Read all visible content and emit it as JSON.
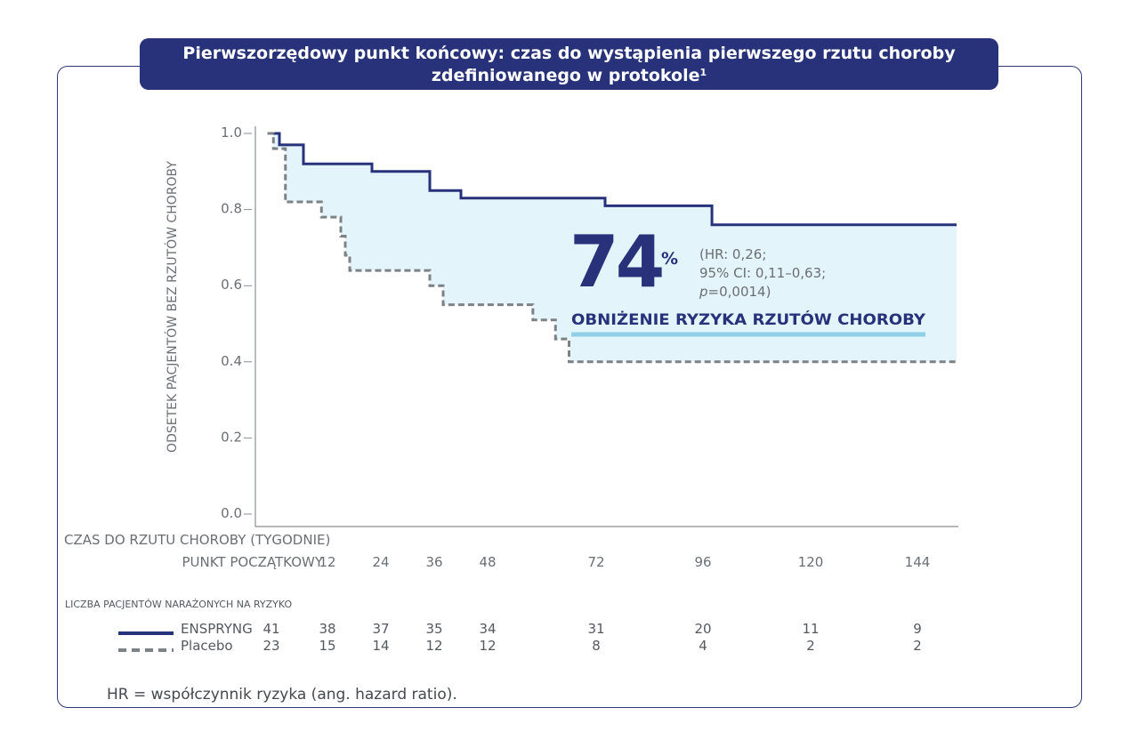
{
  "title": {
    "line1": "Pierwszorzędowy punkt końcowy: czas do wystąpienia pierwszego rzutu choroby",
    "line2": "zdefiniowanego w protokole",
    "footnote_mark": "1"
  },
  "colors": {
    "navy": "#27327a",
    "placebo": "#7d8287",
    "fill": "#e3f4fa",
    "underline": "#8fd0e8"
  },
  "chart_data": {
    "type": "line",
    "subtype": "kaplan-meier step",
    "ylabel": "ODSETEK PACJENTÓW BEZ RZUTÓW CHOROBY",
    "xlabel": "CZAS DO RZUTU CHOROBY (TYGODNIE)",
    "ylim": [
      0,
      1.0
    ],
    "xlim": [
      0,
      152
    ],
    "y_ticks": [
      "0.0",
      "0.2",
      "0.4",
      "0.6",
      "0.8",
      "1.0"
    ],
    "x_ticks": [
      {
        "value": 0,
        "label": "PUNKT POCZĄTKOWY"
      },
      {
        "value": 12,
        "label": "12"
      },
      {
        "value": 24,
        "label": "24"
      },
      {
        "value": 36,
        "label": "36"
      },
      {
        "value": 48,
        "label": "48"
      },
      {
        "value": 72,
        "label": "72"
      },
      {
        "value": 96,
        "label": "96"
      },
      {
        "value": 120,
        "label": "120"
      },
      {
        "value": 144,
        "label": "144"
      }
    ],
    "series": [
      {
        "name": "ENSPRYNG",
        "style": "solid",
        "steps": [
          [
            2,
            1.0
          ],
          [
            4,
            0.97
          ],
          [
            8,
            0.92
          ],
          [
            22,
            0.9
          ],
          [
            35,
            0.85
          ],
          [
            42,
            0.83
          ],
          [
            74,
            0.81
          ],
          [
            98,
            0.76
          ],
          [
            156,
            0.76
          ]
        ]
      },
      {
        "name": "Placebo",
        "style": "dashed",
        "steps": [
          [
            2,
            1.0
          ],
          [
            3,
            0.96
          ],
          [
            5,
            0.82
          ],
          [
            11,
            0.78
          ],
          [
            15,
            0.73
          ],
          [
            16,
            0.68
          ],
          [
            17,
            0.64
          ],
          [
            35,
            0.6
          ],
          [
            38,
            0.55
          ],
          [
            58,
            0.51
          ],
          [
            63,
            0.46
          ],
          [
            66,
            0.4
          ],
          [
            156,
            0.4
          ]
        ]
      }
    ],
    "annotation": {
      "big_number": "74",
      "percent": "%",
      "stat_line1": "(HR: 0,26;",
      "stat_line2": "95% CI: 0,11–0,63;",
      "stat_p_symbol": "p",
      "stat_p_value": "=0,0014)",
      "headline": "OBNIŻENIE RYZYKA RZUTÓW CHOROBY"
    }
  },
  "risk_table": {
    "title": "LICZBA PACJENTÓW NARAŻONYCH NA RYZYKO",
    "rows": [
      {
        "name": "ENSPRYNG",
        "values": [
          "41",
          "38",
          "37",
          "35",
          "34",
          "31",
          "20",
          "11",
          "9"
        ]
      },
      {
        "name": "Placebo",
        "values": [
          "23",
          "15",
          "14",
          "12",
          "12",
          "8",
          "4",
          "2",
          "2"
        ]
      }
    ]
  },
  "footnote": "HR = współczynnik ryzyka (ang. hazard ratio)."
}
